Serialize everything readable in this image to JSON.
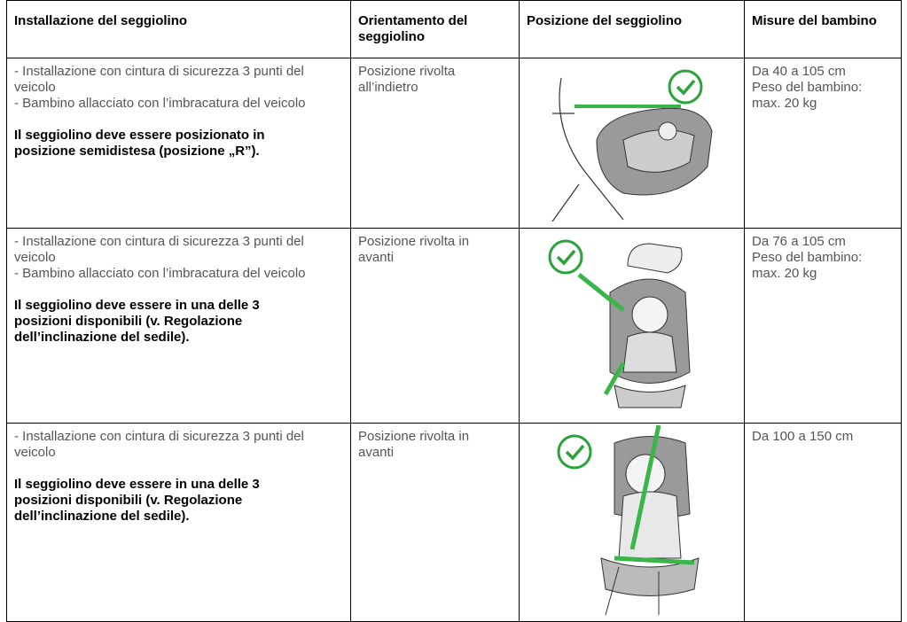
{
  "table": {
    "header": [
      "Installazione del seggiolino",
      "Orientamento del seggiolino",
      "Posizione del seggiolino",
      "Misure del bambino"
    ],
    "rows": [
      {
        "installation": [
          "- Installazione con cintura di sicurezza 3 punti del veicolo",
          "- Bambino allacciato con l’imbracatura del veicolo"
        ],
        "note": "Il seggiolino deve essere posizionato in posizione semidistesa (posizione „R”).",
        "orientation": "Posizione rivolta all’indietro",
        "size": [
          "Da 40 a 105 cm",
          "Peso del bambino: max. 20 kg"
        ]
      },
      {
        "installation": [
          "- Installazione con cintura di sicurezza 3 punti del veicolo",
          "- Bambino allacciato con l’imbracatura del veicolo"
        ],
        "note": "Il seggiolino deve essere in una delle 3 posizioni disponibili (v. Regolazione dell’inclinazione del sedile).",
        "orientation": "Posizione rivolta in avanti",
        "size": [
          "Da 76 a 105 cm",
          "Peso del bambino: max. 20 kg"
        ]
      },
      {
        "installation": [
          "- Installazione con cintura di sicurezza 3 punti del veicolo"
        ],
        "note": "Il seggiolino deve essere in una delle 3 posizioni disponibili (v. Regolazione dell’inclinazione del sedile).",
        "orientation": "Posizione rivolta in avanti",
        "size": [
          "Da 100 a 150 cm"
        ]
      }
    ]
  }
}
